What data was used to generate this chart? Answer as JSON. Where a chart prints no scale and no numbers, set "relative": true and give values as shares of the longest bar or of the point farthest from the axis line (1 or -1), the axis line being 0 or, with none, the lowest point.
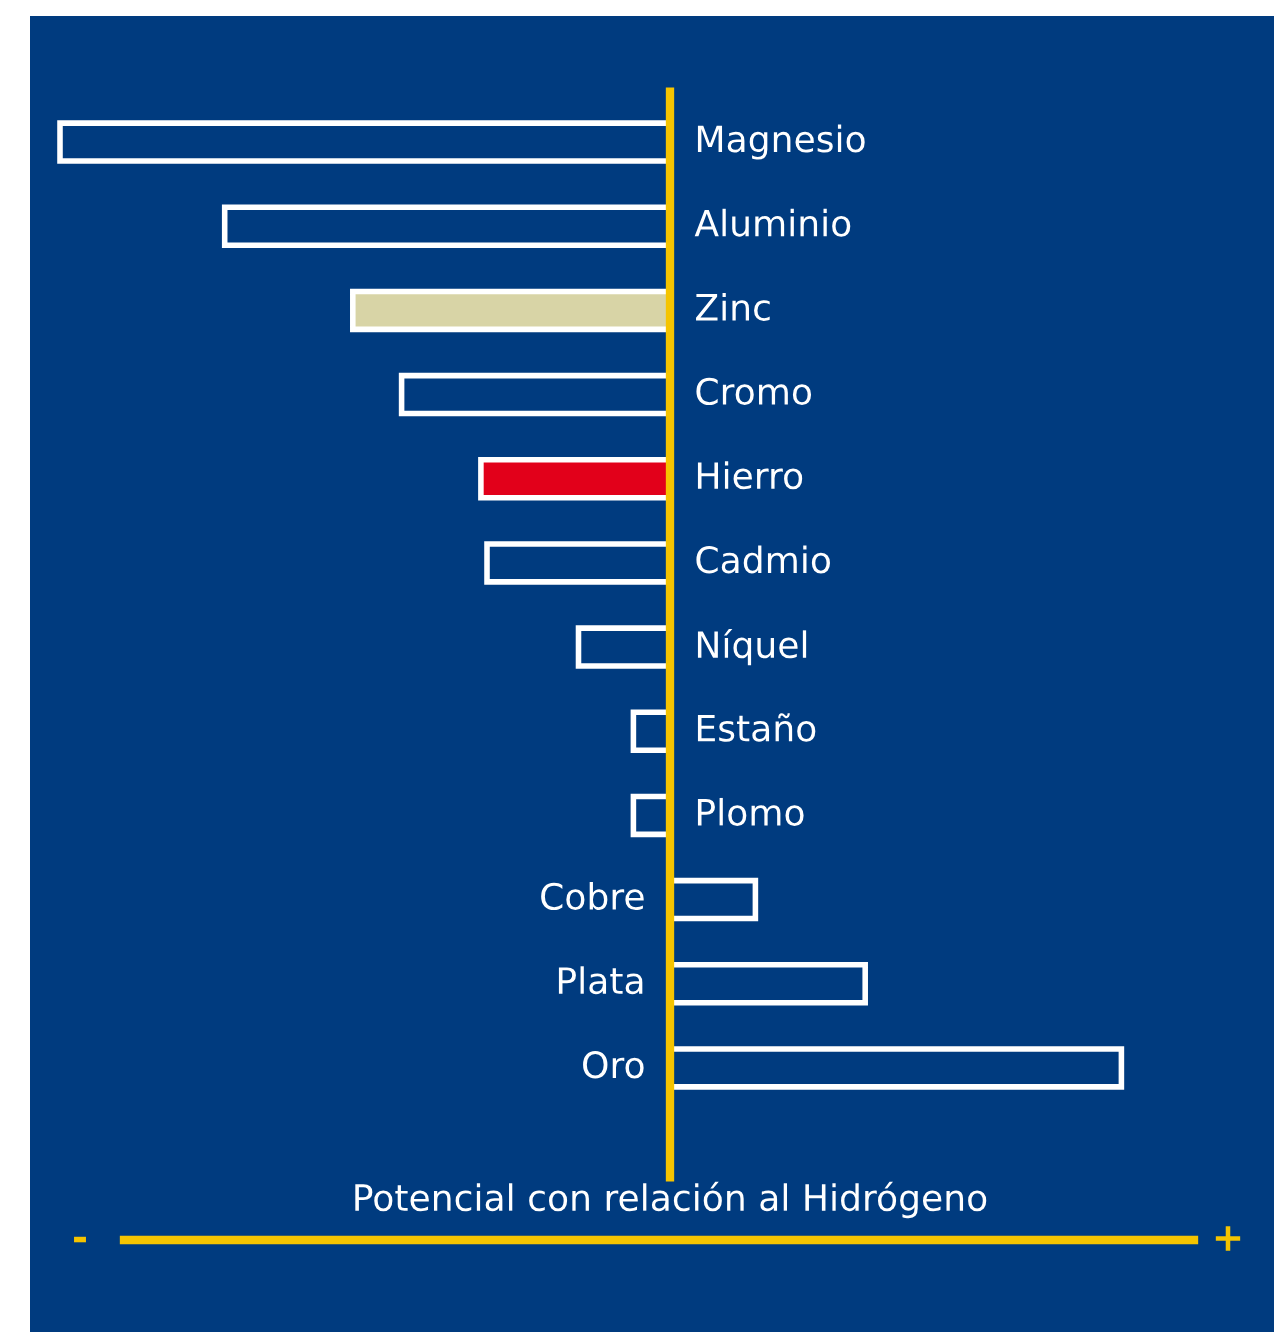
{
  "chart_data": {
    "type": "bar",
    "orientation": "horizontal",
    "relative": true,
    "xlabel": "Potencial con relación al Hidrógeno",
    "categories": [
      "Magnesio",
      "Aluminio",
      "Zinc",
      "Cromo",
      "Hierro",
      "Cadmio",
      "Níquel",
      "Estaño",
      "Plomo",
      "Cobre",
      "Plata",
      "Oro"
    ],
    "values": [
      -1,
      -0.73,
      -0.52,
      -0.44,
      -0.31,
      -0.3,
      -0.15,
      -0.06,
      -0.06,
      0.14,
      0.32,
      0.74
    ],
    "colors": [
      "#003b7f",
      "#003b7f",
      "#d8d4a6",
      "#003b7f",
      "#e2001a",
      "#003b7f",
      "#003b7f",
      "#003b7f",
      "#003b7f",
      "#003b7f",
      "#003b7f",
      "#003b7f"
    ],
    "annotations": [
      "-",
      "+"
    ],
    "legend": false
  }
}
